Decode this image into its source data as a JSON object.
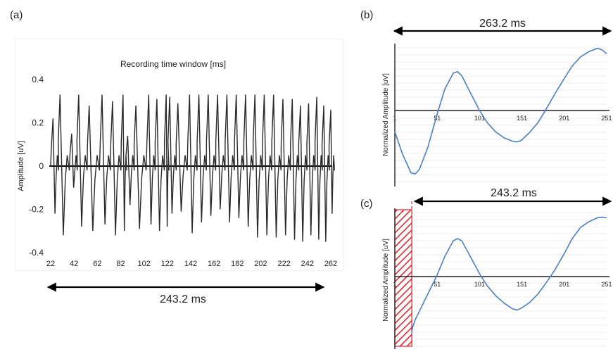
{
  "panels": {
    "a": "(a)",
    "b": "(b)",
    "c": "(c)"
  },
  "colors": {
    "trace_a": "#2a2a2a",
    "trace_bc": "#4a7fc1",
    "hatch": "#d9232a",
    "grid": "#d9d9d9"
  },
  "chart_data": [
    {
      "type": "line",
      "panel": "(a)",
      "title": "Recording time window [ms]",
      "ylabel": "Amplitude [uV]",
      "xlabel": "",
      "x_ticks": [
        "22",
        "42",
        "62",
        "82",
        "102",
        "122",
        "142",
        "162",
        "182",
        "202",
        "222",
        "242",
        "262"
      ],
      "y_ticks": [
        "0.4",
        "0.2",
        "0",
        "-0.2",
        "-0.4"
      ],
      "xlim": [
        22,
        262
      ],
      "ylim": [
        -0.4,
        0.4
      ],
      "grid": false,
      "annotation": "243.2 ms",
      "series": [
        {
          "description_of_shape": "repeated spike oscillation",
          "peaks_x": [
            24,
            30,
            40,
            46,
            55,
            66,
            75,
            84,
            88,
            95,
            106,
            113,
            121,
            124,
            131,
            141,
            149,
            157,
            165,
            173,
            181,
            189,
            197,
            205,
            213,
            221,
            229,
            236,
            243,
            250,
            256,
            262
          ],
          "peaks_y": [
            0.22,
            0.33,
            0.15,
            0.33,
            0.28,
            0.33,
            0.3,
            0.33,
            0.14,
            0.28,
            0.33,
            0.31,
            0.33,
            0.32,
            0.29,
            0.33,
            0.33,
            0.33,
            0.33,
            0.33,
            0.33,
            0.33,
            0.33,
            0.33,
            0.33,
            0.31,
            0.31,
            0.28,
            0.29,
            0.32,
            0.28,
            0.26
          ],
          "troughs_y": [
            -0.22,
            -0.32,
            -0.1,
            -0.28,
            -0.3,
            -0.27,
            -0.32,
            -0.3,
            -0.18,
            -0.29,
            -0.27,
            -0.3,
            -0.28,
            -0.22,
            -0.21,
            -0.31,
            -0.26,
            -0.23,
            -0.2,
            -0.26,
            -0.24,
            -0.28,
            -0.33,
            -0.32,
            -0.33,
            -0.32,
            -0.34,
            -0.35,
            -0.32,
            -0.34,
            -0.35,
            -0.22
          ]
        }
      ]
    },
    {
      "type": "line",
      "panel": "(b)",
      "ylabel": "Normalized Amplitude [uV]",
      "x_ticks": [
        "1",
        "51",
        "101",
        "151",
        "201",
        "251"
      ],
      "xlim": [
        1,
        251
      ],
      "ylim": [
        -1.0,
        0.95
      ],
      "grid": true,
      "annotation": "263.2 ms",
      "series": [
        {
          "x": [
            1,
            10,
            20,
            25,
            30,
            40,
            51,
            60,
            70,
            75,
            80,
            90,
            101,
            110,
            120,
            130,
            140,
            145,
            150,
            160,
            170,
            180,
            190,
            201,
            210,
            220,
            230,
            240,
            245,
            251
          ],
          "y": [
            -0.32,
            -0.65,
            -0.93,
            -0.95,
            -0.88,
            -0.55,
            -0.05,
            0.32,
            0.56,
            0.58,
            0.52,
            0.27,
            0.0,
            -0.18,
            -0.32,
            -0.41,
            -0.46,
            -0.47,
            -0.45,
            -0.33,
            -0.18,
            0.03,
            0.25,
            0.48,
            0.66,
            0.8,
            0.88,
            0.93,
            0.91,
            0.85
          ]
        }
      ]
    },
    {
      "type": "line",
      "panel": "(c)",
      "ylabel": "Normalized Amplitude [uV]",
      "x_ticks": [
        "1",
        "51",
        "101",
        "151",
        "201",
        "251"
      ],
      "xlim": [
        1,
        251
      ],
      "ylim": [
        -1.0,
        0.95
      ],
      "grid": true,
      "annotation": "243.2 ms",
      "hatched_region_x": [
        1,
        21
      ],
      "series": [
        {
          "x": [
            21,
            22,
            25,
            30,
            40,
            51,
            60,
            70,
            75,
            80,
            90,
            101,
            110,
            120,
            130,
            140,
            145,
            150,
            160,
            170,
            180,
            190,
            201,
            210,
            220,
            230,
            240,
            245,
            251
          ],
          "y": [
            -0.97,
            -0.88,
            -0.75,
            -0.6,
            -0.3,
            0.03,
            0.35,
            0.62,
            0.66,
            0.62,
            0.35,
            0.05,
            -0.16,
            -0.33,
            -0.46,
            -0.56,
            -0.58,
            -0.55,
            -0.45,
            -0.3,
            -0.1,
            0.12,
            0.4,
            0.65,
            0.85,
            0.95,
            1.02,
            1.03,
            1.02
          ]
        }
      ]
    }
  ]
}
